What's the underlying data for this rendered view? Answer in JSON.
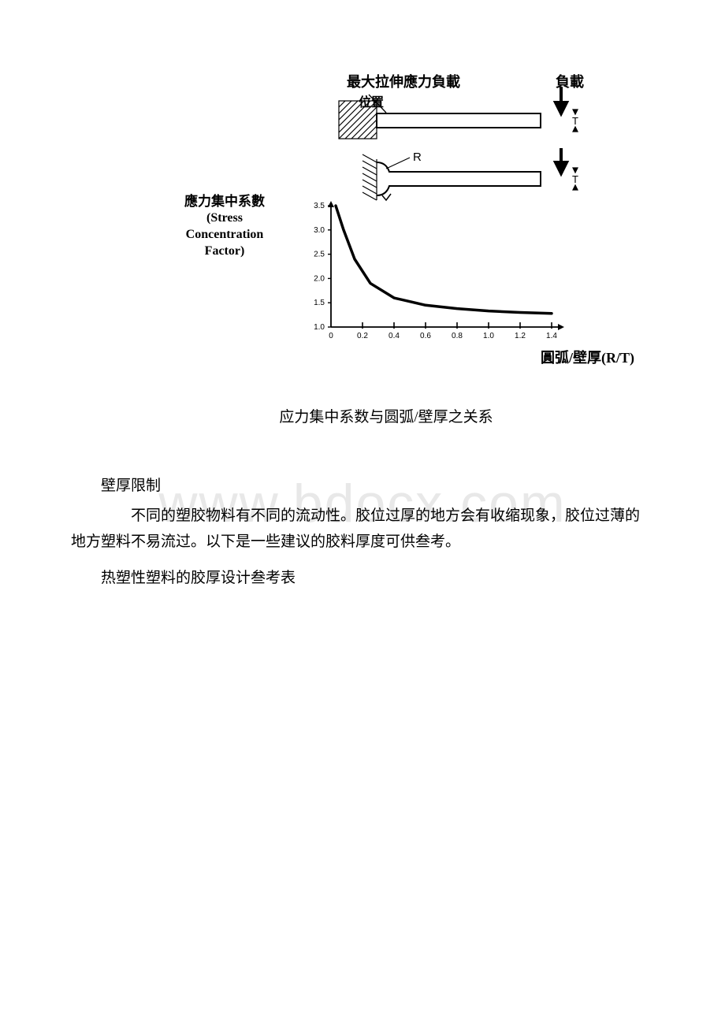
{
  "figure": {
    "top_label_left": "最大拉伸應力負載",
    "top_label_sub": "位置",
    "top_label_right": "負載",
    "y_axis_label_cn": "應力集中系數",
    "y_axis_label_en1": "(Stress",
    "y_axis_label_en2": "Concentration",
    "y_axis_label_en3": "Factor)",
    "x_axis_label_cn": "圓弧/壁厚",
    "x_axis_label_en": "(R/T)",
    "letter_R": "R",
    "letter_T1": "T",
    "letter_T2": "T",
    "caption": "应力集中系数与圆弧/壁厚之关系",
    "chart": {
      "type": "line",
      "ylim": [
        1.0,
        3.5
      ],
      "yticks": [
        1.0,
        1.5,
        2.0,
        2.5,
        3.0,
        3.5
      ],
      "ytick_labels": [
        "1.0",
        "1.5",
        "2.0",
        "2.5",
        "3.0",
        "3.5"
      ],
      "xlim": [
        0,
        1.4
      ],
      "xticks": [
        0,
        0.2,
        0.4,
        0.6,
        0.8,
        1.0,
        1.2,
        1.4
      ],
      "xtick_labels": [
        "0",
        "0.2",
        "0.4",
        "0.6",
        "0.8",
        "1.0",
        "1.2",
        "1.4"
      ],
      "curve_x": [
        0.03,
        0.08,
        0.15,
        0.25,
        0.4,
        0.6,
        0.8,
        1.0,
        1.2,
        1.4
      ],
      "curve_y": [
        3.5,
        3.0,
        2.4,
        1.9,
        1.6,
        1.45,
        1.38,
        1.33,
        1.3,
        1.28
      ],
      "line_color": "#000000",
      "line_width": 3.5,
      "tick_fontsize": 10,
      "axis_color": "#000000",
      "background": "#ffffff"
    }
  },
  "text": {
    "heading1": "壁厚限制",
    "para1": "不同的塑胶物料有不同的流动性。胶位过厚的地方会有收缩现象，胶位过薄的地方塑料不易流过。以下是一些建议的胶料厚度可供叁考。",
    "heading2": "热塑性塑料的胶厚设计叁考表"
  },
  "watermark": "www.bdocx.com"
}
